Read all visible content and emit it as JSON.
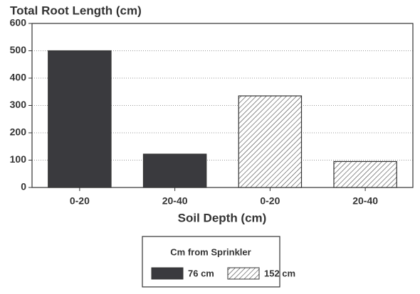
{
  "chart_data": {
    "type": "bar",
    "title": "Total Root Length (cm)",
    "x_label": "Soil Depth (cm)",
    "categories": [
      "0-20",
      "20-40",
      "0-20",
      "20-40"
    ],
    "series": [
      {
        "name": "76 cm",
        "color": "#3a3a3e",
        "hatch": false,
        "values": [
          500,
          122,
          null,
          null
        ]
      },
      {
        "name": "152 cm",
        "color": "#ffffff",
        "hatch": true,
        "values": [
          null,
          null,
          335,
          95
        ]
      }
    ],
    "legend_title": "Cm from Sprinkler",
    "ylim": [
      0,
      600
    ],
    "yticks": [
      0,
      100,
      200,
      300,
      400,
      500,
      600
    ],
    "grid": true
  }
}
